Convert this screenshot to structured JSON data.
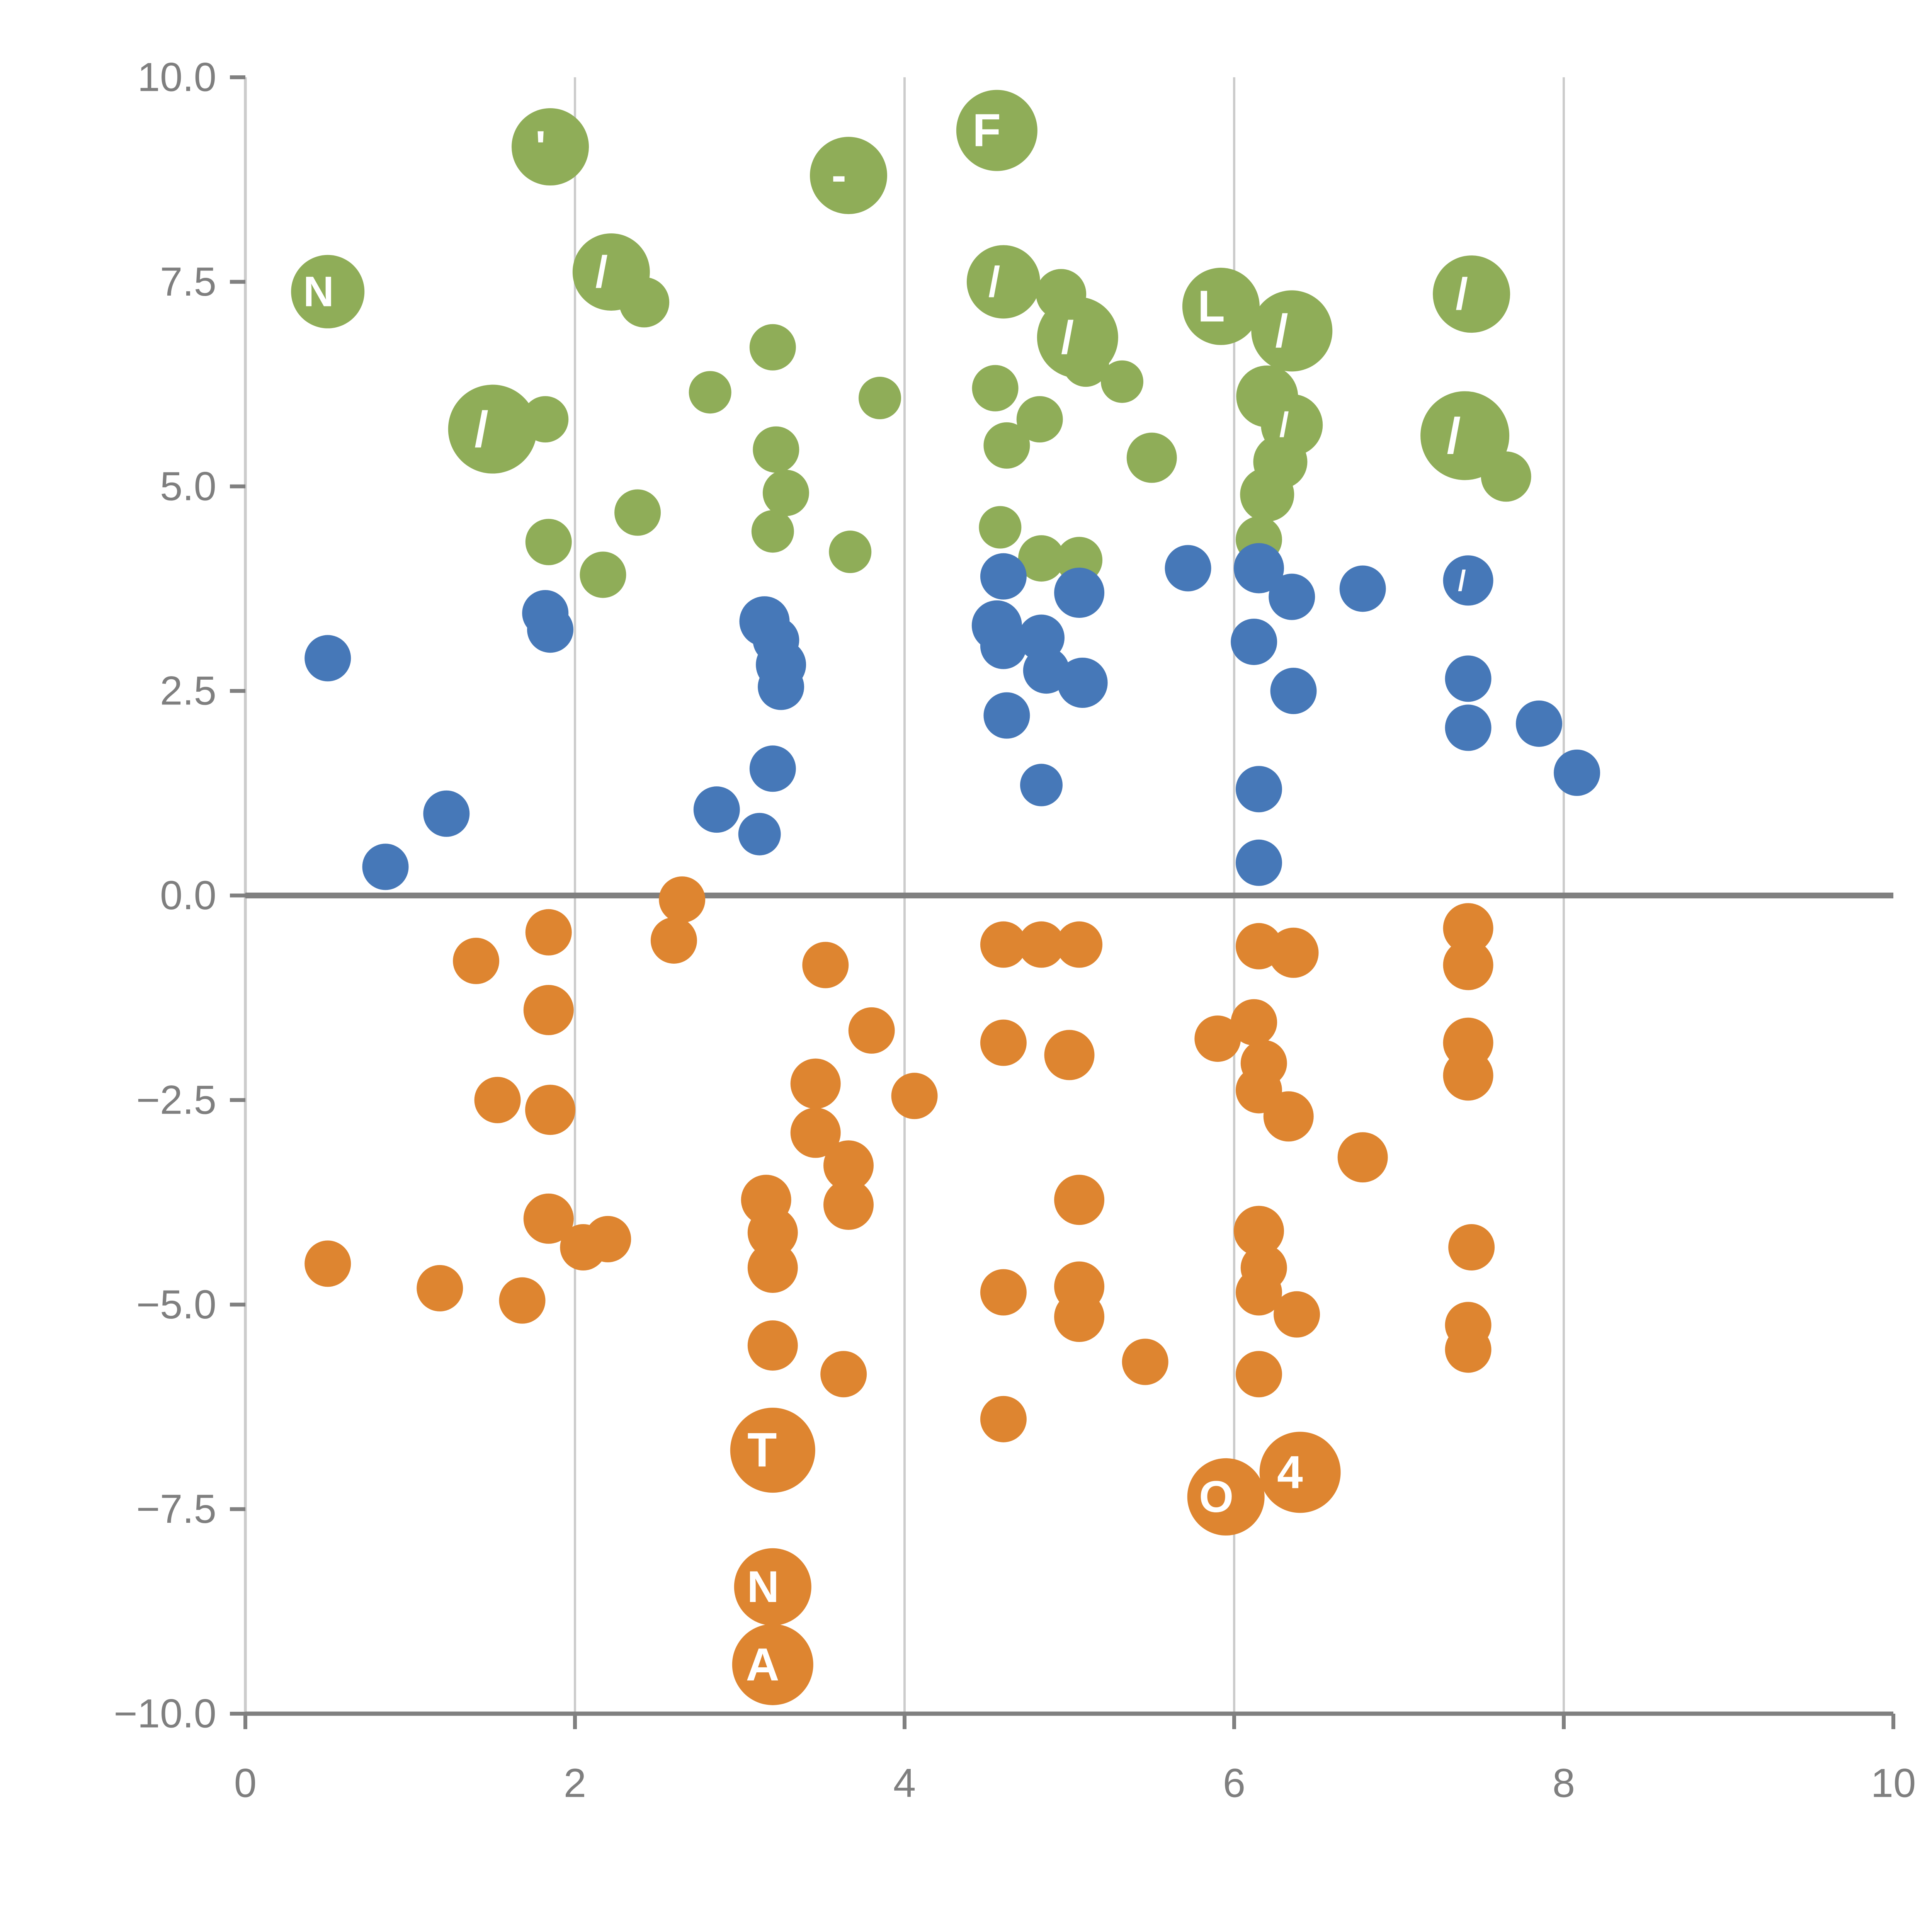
{
  "chart_data": {
    "type": "scatter",
    "title": "",
    "xlabel": "",
    "ylabel": "",
    "xlim": [
      0,
      10
    ],
    "ylim": [
      -10,
      10
    ],
    "grid": "vertical-only",
    "zero_line": true,
    "legend": "none",
    "x_ticks": [
      0,
      2,
      4,
      6,
      8,
      10
    ],
    "x_tick_labels": [
      "0",
      "2",
      "4",
      "6",
      "8",
      "10"
    ],
    "y_ticks": [
      10.0,
      7.5,
      5.0,
      2.5,
      0.0,
      -2.5,
      -5.0,
      -7.5,
      -10.0
    ],
    "y_tick_labels": [
      "10.0",
      "7.5",
      "5.0",
      "2.5",
      "0.0",
      "−2.5",
      "−5.0",
      "−7.5",
      "−10.0"
    ],
    "x_gridlines": [
      2,
      4,
      6,
      8
    ],
    "colors": {
      "green": "#8FAD58",
      "blue": "#4678B8",
      "orange": "#DE8530",
      "grid": "#cccccc",
      "axis": "#808080",
      "tick_text": "#7f7f7f",
      "bubble_label": "#ffffff",
      "background": "#ffffff"
    },
    "point_format": [
      "x",
      "y",
      "r",
      "label"
    ],
    "series": [
      {
        "name": "green",
        "color": "#8FAD58",
        "points": [
          [
            1.85,
            9.15,
            20,
            "'"
          ],
          [
            3.66,
            8.8,
            20,
            "-"
          ],
          [
            4.56,
            9.35,
            21,
            "F"
          ],
          [
            0.5,
            7.38,
            19,
            "N"
          ],
          [
            2.22,
            7.62,
            20,
            "/"
          ],
          [
            2.42,
            7.25,
            13,
            ""
          ],
          [
            4.6,
            7.5,
            19,
            "/"
          ],
          [
            4.95,
            7.35,
            13,
            ""
          ],
          [
            5.05,
            6.82,
            21,
            "/"
          ],
          [
            5.92,
            7.2,
            20,
            "L"
          ],
          [
            6.35,
            6.9,
            21,
            "/"
          ],
          [
            7.44,
            7.35,
            20,
            "/"
          ],
          [
            1.5,
            5.7,
            23,
            "/"
          ],
          [
            1.82,
            5.82,
            12,
            ""
          ],
          [
            3.2,
            6.7,
            12,
            ""
          ],
          [
            2.82,
            6.15,
            11,
            ""
          ],
          [
            3.85,
            6.08,
            11,
            ""
          ],
          [
            4.55,
            6.2,
            12,
            ""
          ],
          [
            4.62,
            5.5,
            12,
            ""
          ],
          [
            4.82,
            5.82,
            12,
            ""
          ],
          [
            5.1,
            6.5,
            12,
            ""
          ],
          [
            5.32,
            6.28,
            11,
            ""
          ],
          [
            6.2,
            6.1,
            16,
            ""
          ],
          [
            6.35,
            5.75,
            16,
            "/"
          ],
          [
            6.28,
            5.3,
            14,
            ""
          ],
          [
            6.2,
            4.9,
            14,
            ""
          ],
          [
            7.4,
            5.62,
            23,
            "/"
          ],
          [
            7.65,
            5.12,
            13,
            ""
          ],
          [
            5.5,
            5.35,
            13,
            ""
          ],
          [
            3.22,
            5.45,
            12,
            ""
          ],
          [
            3.28,
            4.92,
            12,
            ""
          ],
          [
            3.2,
            4.45,
            11,
            ""
          ],
          [
            2.38,
            4.68,
            12,
            ""
          ],
          [
            1.84,
            4.32,
            12,
            ""
          ],
          [
            2.17,
            3.92,
            12,
            ""
          ],
          [
            3.67,
            4.2,
            11,
            ""
          ],
          [
            4.58,
            4.5,
            11,
            ""
          ],
          [
            4.83,
            4.12,
            12,
            ""
          ],
          [
            5.06,
            4.1,
            12,
            ""
          ],
          [
            6.15,
            4.35,
            12,
            ""
          ]
        ]
      },
      {
        "name": "blue",
        "color": "#4678B8",
        "points": [
          [
            0.5,
            2.9,
            12,
            ""
          ],
          [
            0.85,
            0.35,
            12,
            ""
          ],
          [
            1.22,
            1.0,
            12,
            ""
          ],
          [
            1.82,
            3.45,
            12,
            ""
          ],
          [
            1.85,
            3.25,
            12,
            ""
          ],
          [
            2.86,
            1.05,
            12,
            ""
          ],
          [
            3.12,
            0.75,
            11,
            ""
          ],
          [
            3.2,
            1.55,
            12,
            ""
          ],
          [
            3.15,
            3.35,
            13,
            ""
          ],
          [
            3.22,
            3.12,
            12,
            ""
          ],
          [
            3.25,
            2.82,
            13,
            ""
          ],
          [
            3.25,
            2.55,
            12,
            ""
          ],
          [
            4.6,
            3.9,
            12,
            ""
          ],
          [
            4.56,
            3.3,
            13,
            ""
          ],
          [
            4.6,
            3.05,
            12,
            ""
          ],
          [
            4.62,
            2.2,
            12,
            ""
          ],
          [
            4.83,
            3.15,
            12,
            ""
          ],
          [
            4.86,
            2.75,
            12,
            ""
          ],
          [
            4.83,
            1.35,
            11,
            ""
          ],
          [
            5.06,
            3.7,
            13,
            ""
          ],
          [
            5.08,
            2.6,
            13,
            ""
          ],
          [
            5.72,
            4.0,
            12,
            ""
          ],
          [
            6.15,
            4.0,
            13,
            ""
          ],
          [
            6.12,
            3.1,
            12,
            ""
          ],
          [
            6.35,
            3.65,
            12,
            ""
          ],
          [
            6.36,
            2.5,
            12,
            ""
          ],
          [
            6.15,
            1.3,
            12,
            ""
          ],
          [
            6.15,
            0.4,
            12,
            ""
          ],
          [
            6.78,
            3.75,
            12,
            ""
          ],
          [
            7.42,
            3.85,
            13,
            "/"
          ],
          [
            7.42,
            2.65,
            12,
            ""
          ],
          [
            7.42,
            2.05,
            12,
            ""
          ],
          [
            7.85,
            2.1,
            12,
            ""
          ],
          [
            8.08,
            1.5,
            12,
            ""
          ]
        ]
      },
      {
        "name": "orange",
        "color": "#DE8530",
        "points": [
          [
            2.65,
            -0.05,
            12,
            ""
          ],
          [
            2.6,
            -0.55,
            12,
            ""
          ],
          [
            1.4,
            -0.8,
            12,
            ""
          ],
          [
            1.84,
            -0.45,
            12,
            ""
          ],
          [
            1.84,
            -1.4,
            13,
            ""
          ],
          [
            1.53,
            -2.5,
            12,
            ""
          ],
          [
            1.85,
            -2.62,
            13,
            ""
          ],
          [
            3.52,
            -0.85,
            12,
            ""
          ],
          [
            3.8,
            -1.65,
            12,
            ""
          ],
          [
            3.46,
            -2.3,
            13,
            ""
          ],
          [
            4.06,
            -2.45,
            12,
            ""
          ],
          [
            3.46,
            -2.9,
            13,
            ""
          ],
          [
            3.66,
            -3.3,
            13,
            ""
          ],
          [
            3.66,
            -3.78,
            13,
            ""
          ],
          [
            3.16,
            -3.72,
            13,
            ""
          ],
          [
            3.2,
            -4.12,
            13,
            ""
          ],
          [
            3.2,
            -4.55,
            13,
            ""
          ],
          [
            1.84,
            -3.95,
            13,
            ""
          ],
          [
            2.2,
            -4.2,
            12,
            ""
          ],
          [
            2.05,
            -4.3,
            12,
            ""
          ],
          [
            0.5,
            -4.5,
            12,
            ""
          ],
          [
            1.18,
            -4.8,
            12,
            ""
          ],
          [
            1.68,
            -4.95,
            12,
            ""
          ],
          [
            3.2,
            -5.5,
            13,
            ""
          ],
          [
            3.63,
            -5.85,
            12,
            ""
          ],
          [
            4.6,
            -0.6,
            12,
            ""
          ],
          [
            4.83,
            -0.6,
            12,
            ""
          ],
          [
            5.06,
            -0.6,
            12,
            ""
          ],
          [
            4.6,
            -1.8,
            12,
            ""
          ],
          [
            5.0,
            -1.95,
            13,
            ""
          ],
          [
            4.6,
            -4.85,
            12,
            ""
          ],
          [
            5.06,
            -4.78,
            13,
            ""
          ],
          [
            5.06,
            -5.15,
            13,
            ""
          ],
          [
            5.06,
            -3.72,
            13,
            ""
          ],
          [
            5.46,
            -5.7,
            12,
            ""
          ],
          [
            5.9,
            -1.75,
            12,
            ""
          ],
          [
            6.15,
            -0.62,
            12,
            ""
          ],
          [
            6.36,
            -0.7,
            13,
            ""
          ],
          [
            6.12,
            -1.55,
            12,
            ""
          ],
          [
            6.18,
            -2.05,
            12,
            ""
          ],
          [
            6.15,
            -2.38,
            12,
            ""
          ],
          [
            6.33,
            -2.7,
            13,
            ""
          ],
          [
            6.78,
            -3.2,
            13,
            ""
          ],
          [
            6.15,
            -4.1,
            13,
            ""
          ],
          [
            6.18,
            -4.55,
            12,
            ""
          ],
          [
            6.15,
            -4.85,
            12,
            ""
          ],
          [
            6.38,
            -5.12,
            12,
            ""
          ],
          [
            6.15,
            -5.85,
            12,
            ""
          ],
          [
            7.42,
            -0.4,
            13,
            ""
          ],
          [
            7.42,
            -0.85,
            13,
            ""
          ],
          [
            7.42,
            -1.8,
            13,
            ""
          ],
          [
            7.42,
            -2.2,
            13,
            ""
          ],
          [
            7.44,
            -4.3,
            12,
            ""
          ],
          [
            7.42,
            -5.25,
            12,
            ""
          ],
          [
            7.42,
            -5.55,
            12,
            ""
          ],
          [
            4.6,
            -6.4,
            12,
            ""
          ],
          [
            3.2,
            -6.78,
            22,
            "T"
          ],
          [
            5.95,
            -7.35,
            20,
            "O"
          ],
          [
            6.4,
            -7.05,
            21,
            "4"
          ],
          [
            3.2,
            -8.45,
            20,
            "N"
          ],
          [
            3.2,
            -9.4,
            21,
            "A"
          ]
        ]
      }
    ]
  }
}
